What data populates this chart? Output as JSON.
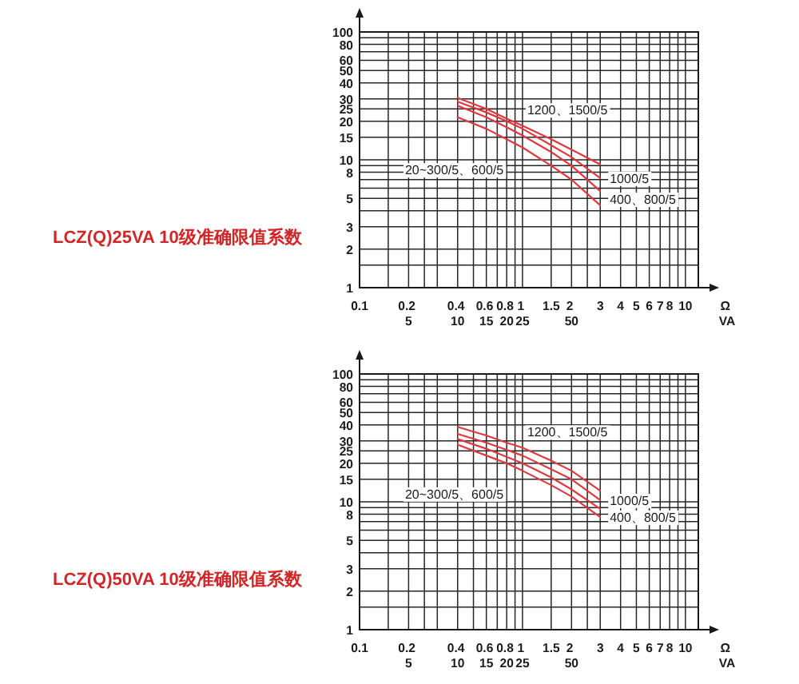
{
  "chart_data": [
    {
      "type": "line",
      "title": "LCZ(Q)25VA 10级准确限值系数",
      "xlabel": "Ω\nVA",
      "log": "xy",
      "xlim": [
        0.1,
        12
      ],
      "ylim": [
        1,
        100
      ],
      "xticks": [
        0.1,
        {
          "value": 0.15,
          "label": null
        },
        {
          "value": 0.2,
          "label": "0.2\n5"
        },
        {
          "value": 0.25,
          "label": null
        },
        {
          "value": 0.3,
          "label": null
        },
        {
          "value": 0.4,
          "label": "0.4\n10"
        },
        {
          "value": 0.5,
          "label": null
        },
        {
          "value": 0.6,
          "label": "0.6\n15"
        },
        {
          "value": 0.7,
          "label": null
        },
        {
          "value": 0.8,
          "label": "0.8\n20"
        },
        {
          "value": 0.9,
          "label": null
        },
        {
          "value": 1,
          "label": "1\n25"
        },
        1.5,
        {
          "value": 2,
          "label": "2\n50"
        },
        {
          "value": 2.5,
          "label": null
        },
        3,
        4,
        5,
        6,
        7,
        8,
        {
          "value": 9,
          "label": null
        },
        10
      ],
      "yticks": [
        1,
        {
          "value": 1.5,
          "label": null
        },
        2,
        3,
        {
          "value": 4,
          "label": null
        },
        5,
        {
          "value": 6,
          "label": null
        },
        {
          "value": 7,
          "label": null
        },
        8,
        {
          "value": 9,
          "label": null
        },
        10,
        15,
        20,
        25,
        30,
        40,
        50,
        60,
        {
          "value": 70,
          "label": null
        },
        80,
        {
          "value": 90,
          "label": null
        },
        100
      ],
      "grid": true,
      "x": [
        0.4,
        0.6,
        0.8,
        1,
        1.5,
        2,
        3
      ],
      "series": [
        {
          "name": "1200、1500/5",
          "color": "#e0383f",
          "values": [
            30.5,
            25,
            21,
            18.5,
            14.5,
            12,
            9.2
          ]
        },
        {
          "name": "1000/5",
          "color": "#e0383f",
          "values": [
            28.5,
            23.5,
            20,
            17.5,
            13,
            10.5,
            7.2
          ]
        },
        {
          "name": "400、800/5",
          "color": "#e0383f",
          "values": [
            26.5,
            21.5,
            18,
            15.5,
            11.5,
            9,
            5.7
          ]
        },
        {
          "name": "20~300/5、600/5",
          "color": "#e0383f",
          "values": [
            21.5,
            17.5,
            14.5,
            12.5,
            9,
            7,
            4.4
          ]
        }
      ]
    },
    {
      "type": "line",
      "title": "LCZ(Q)50VA 10级准确限值系数",
      "xlabel": "Ω\nVA",
      "log": "xy",
      "xlim": [
        0.1,
        12
      ],
      "ylim": [
        1,
        100
      ],
      "xticks": [
        0.1,
        {
          "value": 0.15,
          "label": null
        },
        {
          "value": 0.2,
          "label": "0.2\n5"
        },
        {
          "value": 0.25,
          "label": null
        },
        {
          "value": 0.3,
          "label": null
        },
        {
          "value": 0.4,
          "label": "0.4\n10"
        },
        {
          "value": 0.5,
          "label": null
        },
        {
          "value": 0.6,
          "label": "0.6\n15"
        },
        {
          "value": 0.7,
          "label": null
        },
        {
          "value": 0.8,
          "label": "0.8\n20"
        },
        {
          "value": 0.9,
          "label": null
        },
        {
          "value": 1,
          "label": "1\n25"
        },
        1.5,
        {
          "value": 2,
          "label": "2\n50"
        },
        {
          "value": 2.5,
          "label": null
        },
        3,
        4,
        5,
        6,
        7,
        8,
        {
          "value": 9,
          "label": null
        },
        10
      ],
      "yticks": [
        1,
        {
          "value": 1.5,
          "label": null
        },
        2,
        3,
        {
          "value": 4,
          "label": null
        },
        5,
        {
          "value": 6,
          "label": null
        },
        {
          "value": 7,
          "label": null
        },
        8,
        {
          "value": 9,
          "label": null
        },
        10,
        15,
        20,
        25,
        30,
        40,
        50,
        60,
        {
          "value": 70,
          "label": null
        },
        80,
        {
          "value": 90,
          "label": null
        },
        100
      ],
      "grid": true,
      "x": [
        0.4,
        0.6,
        0.8,
        1,
        1.5,
        2,
        3
      ],
      "series": [
        {
          "name": "1200、1500/5",
          "color": "#e0383f",
          "values": [
            38.5,
            33,
            29,
            26.5,
            21,
            17.5,
            12.2
          ]
        },
        {
          "name": "1000/5",
          "color": "#e0383f",
          "values": [
            34,
            29,
            25.5,
            23,
            18,
            15,
            10.3
          ]
        },
        {
          "name": "400、800/5",
          "color": "#e0383f",
          "values": [
            31,
            26,
            22.5,
            20,
            15.5,
            12.5,
            8.8
          ]
        },
        {
          "name": "20~300/5、600/5",
          "color": "#e0383f",
          "values": [
            28,
            23,
            20,
            17.5,
            13.5,
            11,
            7.6
          ]
        }
      ]
    }
  ]
}
